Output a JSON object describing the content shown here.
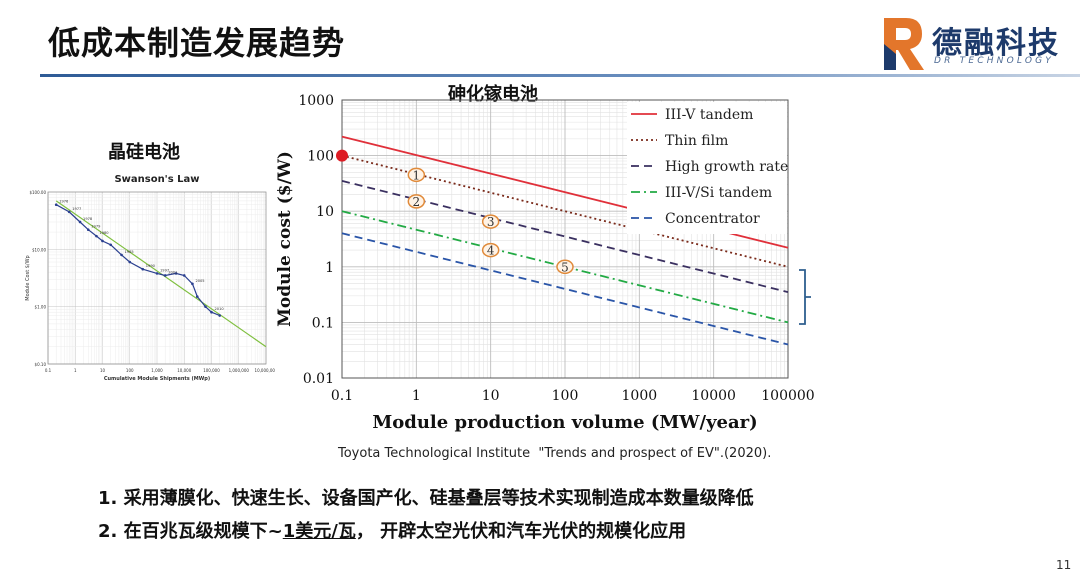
{
  "header": {
    "title": "低成本制造发展趋势",
    "logo_name": "德融科技",
    "logo_sub": "DR TECHNOLOGY"
  },
  "crystalline_title": "晶硅电池",
  "chart_title": "砷化镓电池",
  "citation": "Toyota Technological Institute  \"Trends and prospect of EV\".(2020).",
  "bullets": [
    {
      "num": "1.",
      "text": "采用薄膜化、快速生长、设备国产化、硅基叠层等技术实现制造成本数量级降低",
      "underlined": ""
    },
    {
      "num": "2.",
      "text": "在百兆瓦级规模下~",
      "underlined": "1美元/瓦",
      "after": "，  开辟太空光伏和汽车光伏的规模化应用"
    }
  ],
  "page_number": "11",
  "colors": {
    "brand_blue": "#1d3a6b",
    "logo_orange": "#e3762b",
    "bracket": "#2e5f8f"
  },
  "chart_data": [
    {
      "type": "line",
      "title": "",
      "xlabel": "Module production volume (MW/year)",
      "ylabel": "Module cost ($/W)",
      "xscale": "log",
      "yscale": "log",
      "xlim": [
        0.1,
        100000
      ],
      "ylim": [
        0.01,
        1000
      ],
      "xticks": [
        "0.1",
        "1",
        "10",
        "100",
        "1000",
        "10000",
        "100000"
      ],
      "yticks": [
        "1000",
        "100",
        "10",
        "1",
        "0.1",
        "0.01"
      ],
      "grid": true,
      "legend": "top-right inside",
      "series": [
        {
          "name": "III-V tandem",
          "x": [
            0.1,
            100000
          ],
          "y": [
            220,
            2.2
          ],
          "color": "#e0303a",
          "dash": "solid"
        },
        {
          "name": "Thin film",
          "x": [
            0.1,
            100000
          ],
          "y": [
            100,
            1.0
          ],
          "color": "#7a2a1a",
          "dash": "dot"
        },
        {
          "name": "High growth rate",
          "x": [
            0.1,
            100000
          ],
          "y": [
            35,
            0.35
          ],
          "color": "#3a3060",
          "dash": "dash"
        },
        {
          "name": "III-V/Si tandem",
          "x": [
            0.1,
            100000
          ],
          "y": [
            10,
            0.1
          ],
          "color": "#22aa44",
          "dash": "dashdot"
        },
        {
          "name": "Concentrator",
          "x": [
            0.1,
            100000
          ],
          "y": [
            4,
            0.04
          ],
          "color": "#2a55a8",
          "dash": "dash"
        }
      ],
      "start_marker": {
        "x": 0.1,
        "y": 100,
        "color": "#dd1c24"
      },
      "annotations": [
        {
          "label": "1",
          "x": 1,
          "y": 45
        },
        {
          "label": "2",
          "x": 1,
          "y": 15
        },
        {
          "label": "3",
          "x": 10,
          "y": 6.5
        },
        {
          "label": "4",
          "x": 10,
          "y": 2.0
        },
        {
          "label": "5",
          "x": 100,
          "y": 1.0
        }
      ]
    },
    {
      "type": "line",
      "title": "Swanson's Law",
      "xlabel": "Cumulative Module Shipments (MWp)",
      "ylabel": "Module Cost $/Wp",
      "xscale": "log",
      "yscale": "log",
      "xlim": [
        0.1,
        10000000
      ],
      "ylim": [
        0.1,
        100
      ],
      "xticks": [
        "0.1",
        "1",
        "10",
        "100",
        "1,000",
        "10,000",
        "100,000",
        "1,000,000",
        "10,000,000"
      ],
      "yticks": [
        "$100.00",
        "$10.00",
        "$1.00",
        "$0.10"
      ],
      "grid": true,
      "series": [
        {
          "name": "",
          "x": [
            0.2,
            0.6,
            1.5,
            3,
            6,
            10,
            20,
            50,
            100,
            300,
            1000,
            2000,
            5000,
            10000,
            20000,
            30000,
            60000,
            100000,
            200000
          ],
          "y": [
            60,
            45,
            30,
            22,
            17,
            14,
            12,
            8,
            6,
            4.5,
            3.8,
            3.5,
            3.8,
            3.5,
            2.5,
            1.5,
            1.0,
            0.8,
            0.7
          ],
          "color": "#2a3f8f"
        },
        {
          "name": "",
          "x": [
            0.2,
            10000000
          ],
          "y": [
            70,
            0.2
          ],
          "color": "#7fbf3f"
        }
      ],
      "year_labels": [
        {
          "text": "1976",
          "x": 0.2,
          "y": 60
        },
        {
          "text": "1977",
          "x": 0.6,
          "y": 45
        },
        {
          "text": "1978",
          "x": 1.5,
          "y": 30
        },
        {
          "text": "1979",
          "x": 3,
          "y": 22
        },
        {
          "text": "1980",
          "x": 6,
          "y": 17
        },
        {
          "text": "1985",
          "x": 50,
          "y": 8
        },
        {
          "text": "1990",
          "x": 300,
          "y": 4.5
        },
        {
          "text": "1997",
          "x": 1000,
          "y": 3.8
        },
        {
          "text": "2001",
          "x": 2000,
          "y": 3.5
        },
        {
          "text": "2005",
          "x": 20000,
          "y": 2.5
        },
        {
          "text": "2010",
          "x": 100000,
          "y": 0.8
        }
      ]
    }
  ]
}
